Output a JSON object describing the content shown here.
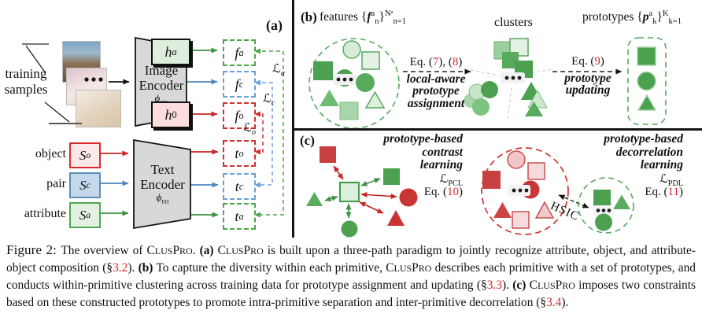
{
  "palette": {
    "green": "#4ba150",
    "green_light": "#ddefdd",
    "red": "#c93434",
    "red_light": "#f6dbdd",
    "blue": "#4f86c0",
    "blue_light": "#c5d9ec",
    "encoder_gray": "#d8d8d8",
    "divider_black": "#151515",
    "eq_red": "#d42a2a"
  },
  "panel_a": {
    "tag": "(a)",
    "training_label": [
      "training",
      "samples"
    ],
    "image_encoder": {
      "line1": "Image",
      "line2": "Encoder",
      "phi": [
        {
          "t": "ϕ",
          "s": "it"
        },
        {
          "t": "vis",
          "s": "sub"
        }
      ]
    },
    "text_encoder": {
      "line1": "Text",
      "line2": "Encoder",
      "phi": [
        {
          "t": "ϕ",
          "s": "it"
        },
        {
          "t": "txt",
          "s": "sub"
        }
      ]
    },
    "heads": {
      "attr": [
        {
          "t": "h",
          "s": "it"
        },
        {
          "t": "a",
          "s": "sub it"
        }
      ],
      "obj": [
        {
          "t": "h",
          "s": "it"
        },
        {
          "t": "0",
          "s": "sub"
        }
      ]
    },
    "inputs": [
      {
        "label": "object",
        "symbol": [
          {
            "t": "S",
            "s": "it"
          },
          {
            "t": "o",
            "s": "sup it"
          }
        ]
      },
      {
        "label": "pair",
        "symbol": [
          {
            "t": "S",
            "s": "it"
          },
          {
            "t": "c",
            "s": "sup it"
          }
        ]
      },
      {
        "label": "attribute",
        "symbol": [
          {
            "t": "S",
            "s": "it"
          },
          {
            "t": "a",
            "s": "sup it"
          }
        ]
      }
    ],
    "visual_features": [
      [
        {
          "t": "f",
          "s": "it"
        },
        {
          "t": "a",
          "s": "sup it"
        }
      ],
      [
        {
          "t": "f",
          "s": "it"
        },
        {
          "t": "c",
          "s": "sup it"
        }
      ],
      [
        {
          "t": "f",
          "s": "it"
        },
        {
          "t": "o",
          "s": "sup it"
        }
      ]
    ],
    "text_features": [
      [
        {
          "t": "t",
          "s": "it"
        },
        {
          "t": "o",
          "s": "sup it"
        }
      ],
      [
        {
          "t": "t",
          "s": "it"
        },
        {
          "t": "c",
          "s": "sup it"
        }
      ],
      [
        {
          "t": "t",
          "s": "it"
        },
        {
          "t": "a",
          "s": "sup it"
        }
      ]
    ],
    "losses": {
      "attr": [
        {
          "t": "ℒ",
          "s": "scr"
        },
        {
          "t": "a",
          "s": "sub it"
        }
      ],
      "pair": [
        {
          "t": "ℒ",
          "s": "scr"
        },
        {
          "t": "c",
          "s": "sub it"
        }
      ],
      "obj": [
        {
          "t": "ℒ",
          "s": "scr"
        },
        {
          "t": "o",
          "s": "sub it"
        }
      ]
    }
  },
  "panel_b": {
    "tag": "(b)",
    "features_label": [
      {
        "t": "features {"
      },
      {
        "t": "f",
        "s": "bi"
      },
      {
        "t": "a",
        "s": "sup"
      },
      {
        "t": "n",
        "s": "sub"
      },
      {
        "t": "}"
      },
      {
        "t": "Nᵃ",
        "s": "sup"
      },
      {
        "t": "n=1",
        "s": "sub"
      }
    ],
    "clusters_label": "clusters",
    "prototypes_label": [
      {
        "t": "prototypes {"
      },
      {
        "t": "p",
        "s": "bi"
      },
      {
        "t": "a",
        "s": "sup"
      },
      {
        "t": "k",
        "s": "sub"
      },
      {
        "t": "}"
      },
      {
        "t": "K",
        "s": "sup"
      },
      {
        "t": "k=1",
        "s": "sub"
      }
    ],
    "step1": {
      "eq": [
        {
          "t": "Eq. ("
        },
        {
          "t": "7",
          "s": "red"
        },
        {
          "t": "), ("
        },
        {
          "t": "8",
          "s": "red"
        },
        {
          "t": ")"
        }
      ],
      "lines": [
        "local-aware",
        "prototype",
        "assignment"
      ]
    },
    "step2": {
      "eq": [
        {
          "t": "Eq. ("
        },
        {
          "t": "9",
          "s": "red"
        },
        {
          "t": ")"
        }
      ],
      "lines": [
        "prototype",
        "updating"
      ]
    }
  },
  "panel_c": {
    "tag": "(c)",
    "pcl": {
      "lines": [
        "prototype-based",
        "contrast",
        "learning"
      ],
      "loss": [
        {
          "t": "ℒ",
          "s": "scr"
        },
        {
          "t": "PCL",
          "s": "sub"
        }
      ],
      "eq": [
        {
          "t": "Eq. ("
        },
        {
          "t": "10",
          "s": "red"
        },
        {
          "t": ")"
        }
      ]
    },
    "pdl": {
      "lines": [
        "prototype-based",
        "decorrelation",
        "learning"
      ],
      "loss": [
        {
          "t": "ℒ",
          "s": "scr"
        },
        {
          "t": "PDL",
          "s": "sub"
        }
      ],
      "eq": [
        {
          "t": "Eq. ("
        },
        {
          "t": "11",
          "s": "red"
        },
        {
          "t": ")"
        }
      ]
    },
    "hsic_label": "HSIC"
  },
  "caption": {
    "segments": [
      {
        "t": "Figure 2: ",
        "s": "lg"
      },
      {
        "t": "The overview of C"
      },
      {
        "t": "LUS",
        "s": "sc"
      },
      {
        "t": "P"
      },
      {
        "t": "RO",
        "s": "sc"
      },
      {
        "t": ". "
      },
      {
        "t": "(a)",
        "s": "b"
      },
      {
        "t": " C"
      },
      {
        "t": "LUS",
        "s": "sc"
      },
      {
        "t": "P"
      },
      {
        "t": "RO",
        "s": "sc"
      },
      {
        "t": " is built upon a three-path paradigm to jointly recognize attribute, object, and attribute-object composition (§"
      },
      {
        "t": "3.2",
        "s": "red"
      },
      {
        "t": "). "
      },
      {
        "t": "(b)",
        "s": "b"
      },
      {
        "t": " To capture the diversity within each primitive, C"
      },
      {
        "t": "LUS",
        "s": "sc"
      },
      {
        "t": "P"
      },
      {
        "t": "RO",
        "s": "sc"
      },
      {
        "t": " describes each primitive with a set of prototypes, and conducts within-primitive clustering across training data for prototype assignment and updating (§"
      },
      {
        "t": "3.3",
        "s": "red"
      },
      {
        "t": "). "
      },
      {
        "t": "(c)",
        "s": "b"
      },
      {
        "t": " C"
      },
      {
        "t": "LUS",
        "s": "sc"
      },
      {
        "t": "P"
      },
      {
        "t": "RO",
        "s": "sc"
      },
      {
        "t": " imposes two constraints based on these constructed prototypes to promote intra-primitive separation and inter-primitive decorrelation (§"
      },
      {
        "t": "3.4",
        "s": "red"
      },
      {
        "t": ")."
      }
    ]
  }
}
